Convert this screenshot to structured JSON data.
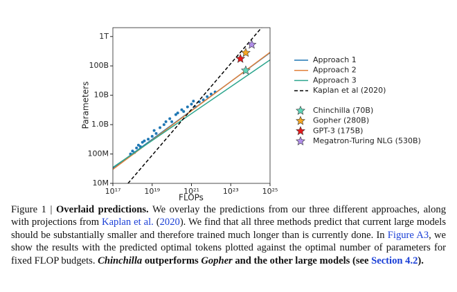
{
  "chart_data": {
    "type": "line",
    "xlabel": "FLOPs",
    "ylabel": "Parameters",
    "log_x": true,
    "log_y": true,
    "grid": false,
    "legend": "outside right",
    "xlim": [
      1e+17,
      1e+25
    ],
    "ylim": [
      10000000.0,
      2000000000000.0
    ],
    "xticks": [
      {
        "value": 1e+17,
        "label": "10¹⁷"
      },
      {
        "value": 1e+19,
        "label": "10¹⁹"
      },
      {
        "value": 1e+21,
        "label": "10²¹"
      },
      {
        "value": 1e+23,
        "label": "10²³"
      },
      {
        "value": 1e+25,
        "label": "10²⁵"
      }
    ],
    "yticks": [
      {
        "value": 10000000.0,
        "label": "10M"
      },
      {
        "value": 100000000.0,
        "label": "100M"
      },
      {
        "value": 1000000000.0,
        "label": "1.0B"
      },
      {
        "value": 10000000000.0,
        "label": "10B"
      },
      {
        "value": 100000000000.0,
        "label": "100B"
      },
      {
        "value": 1000000000000.0,
        "label": "1T"
      }
    ],
    "series": [
      {
        "name": "Approach 1",
        "color": "#1f77b4",
        "style": "solid",
        "x": [
          1e+17,
          1e+25
        ],
        "values": [
          33000000.0,
          280000000000.0
        ]
      },
      {
        "name": "Approach 2",
        "color": "#e0803a",
        "style": "solid",
        "x": [
          1e+17,
          1e+25
        ],
        "values": [
          30000000.0,
          290000000000.0
        ]
      },
      {
        "name": "Approach 3",
        "color": "#2ca58d",
        "style": "solid",
        "x": [
          1e+17,
          1e+25
        ],
        "values": [
          35000000.0,
          160000000000.0
        ]
      },
      {
        "name": "Kaplan et al (2020)",
        "color": "#000000",
        "style": "dashed",
        "x": [
          5.9e+17,
          3.7e+24
        ],
        "values": [
          10000000.0,
          2000000000000.0
        ]
      }
    ],
    "points": {
      "color": "#1f77b4",
      "x": [
        7.9e+17,
        1e+18,
        1.26e+18,
        1.6e+18,
        2e+18,
        2.5e+18,
        3.2e+18,
        4e+18,
        6.3e+18,
        1e+19,
        1.26e+19,
        1.6e+19,
        2.5e+19,
        4e+19,
        5e+19,
        7.9e+19,
        1e+20,
        1.6e+20,
        2e+20,
        3.2e+20,
        4e+20,
        6.3e+20,
        1e+21,
        1.26e+21,
        1.6e+21,
        2.5e+21,
        4e+21,
        6.3e+21,
        1e+22,
        1.6e+22
      ],
      "values": [
        100000000.0,
        126000000.0,
        112000000.0,
        160000000.0,
        200000000.0,
        180000000.0,
        250000000.0,
        280000000.0,
        320000000.0,
        400000000.0,
        630000000.0,
        500000000.0,
        790000000.0,
        1000000000.0,
        1260000000.0,
        1600000000.0,
        1260000000.0,
        2200000000.0,
        2500000000.0,
        3200000000.0,
        2800000000.0,
        4000000000.0,
        5000000000.0,
        6300000000.0,
        4000000000.0,
        6000000000.0,
        7000000000.0,
        9000000000.0,
        11000000000.0,
        13000000000.0
      ]
    },
    "models": [
      {
        "name": "Chinchilla (70B)",
        "color": "#5fd6b8",
        "x": 5.8e+23,
        "value": 70000000000.0
      },
      {
        "name": "Gopher (280B)",
        "color": "#f5a623",
        "x": 5.8e+23,
        "value": 280000000000.0
      },
      {
        "name": "GPT-3 (175B)",
        "color": "#e31a1c",
        "x": 3.1e+23,
        "value": 175000000000.0
      },
      {
        "name": "Megatron-Turing NLG (530B)",
        "color": "#b08ee8",
        "x": 1.17e+24,
        "value": 530000000000.0
      }
    ]
  },
  "caption": {
    "runs": [
      "Figure 1 | ",
      "Overlaid predictions.",
      " We overlay the predictions from our three different approaches, along with projections from ",
      "Kaplan et al.",
      " (",
      "2020",
      "). We find that all three methods predict that current large models should be substantially smaller and therefore trained much longer than is currently done. In ",
      "Figure A3",
      ", we show the results with the predicted optimal tokens plotted against the optimal number of parameters for fixed FLOP budgets. ",
      "Chinchilla",
      " outperforms ",
      "Gopher",
      " and the other large models (see ",
      "Section 4.2",
      ")."
    ]
  }
}
